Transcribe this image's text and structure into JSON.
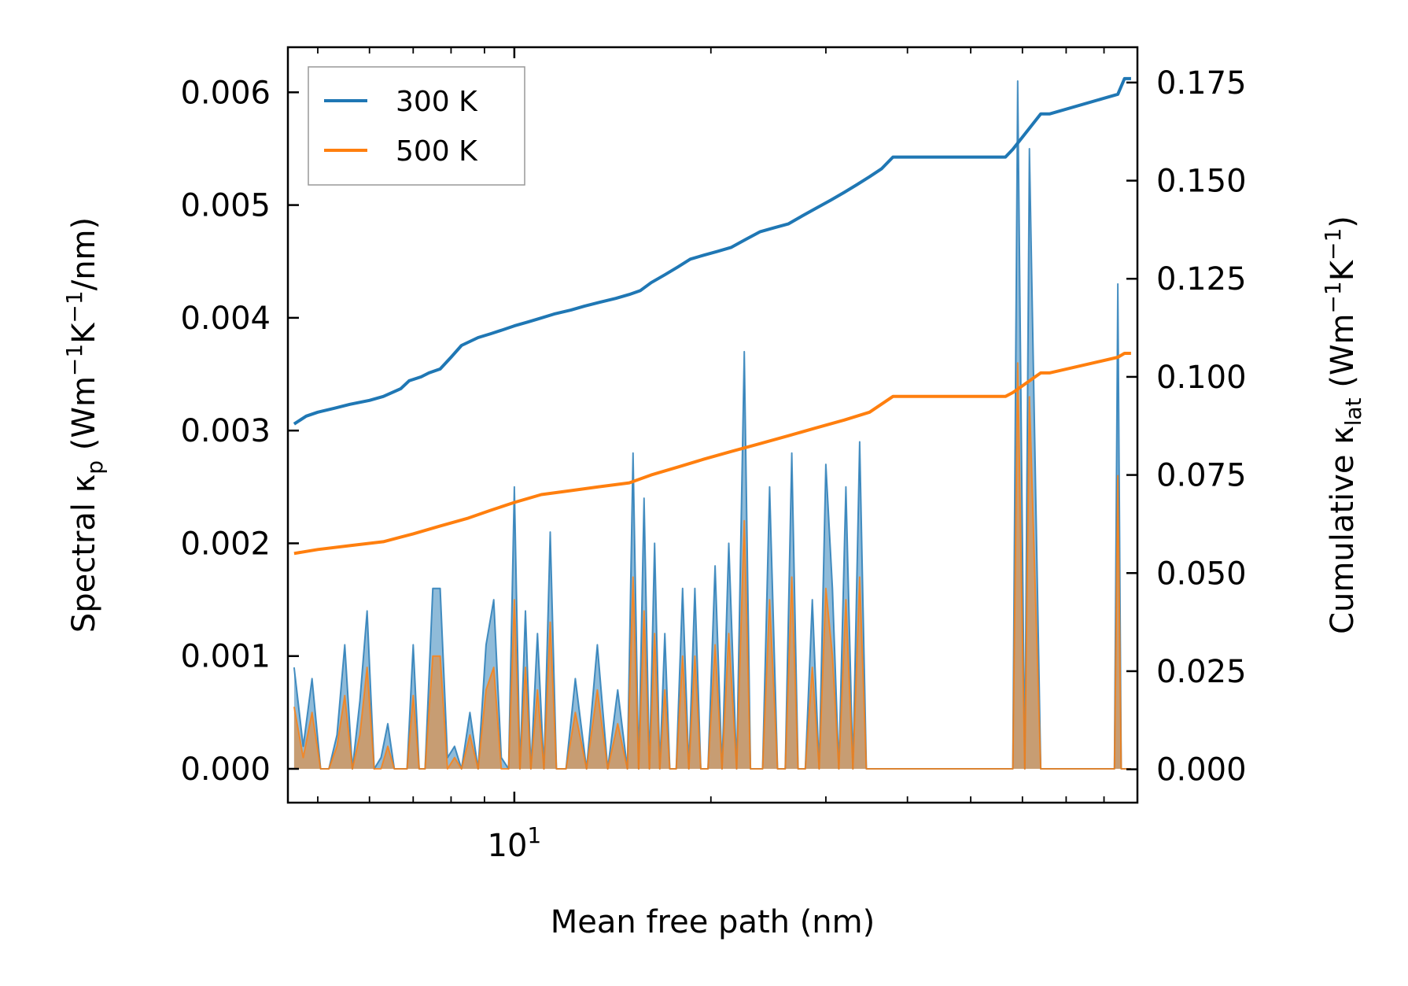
{
  "chart_data": {
    "type": "line",
    "xlabel": "Mean free path (nm)",
    "x_scale": "log",
    "xlim": [
      4.5,
      90
    ],
    "x_major_tick_labels": [
      {
        "value": 10,
        "base": "10",
        "exp": "1"
      }
    ],
    "ylabel_left": {
      "pre": "Spectral κ",
      "sub": "p",
      "unit": " (Wm",
      "e1": "−1",
      "mid": "K",
      "e2": "−1",
      "post": "/nm)"
    },
    "ylim_left": [
      -0.0003,
      0.0064
    ],
    "yticks_left": [
      "0.000",
      "0.001",
      "0.002",
      "0.003",
      "0.004",
      "0.005",
      "0.006"
    ],
    "ytick_values_left": [
      0,
      0.001,
      0.002,
      0.003,
      0.004,
      0.005,
      0.006
    ],
    "ylabel_right": {
      "pre": "Cumulative κ",
      "sub": "lat",
      "unit": " (Wm",
      "e1": "−1",
      "mid": "K",
      "e2": "−1",
      "post": ")"
    },
    "ylim_right": [
      -0.0085,
      0.184
    ],
    "yticks_right": [
      "0.000",
      "0.025",
      "0.050",
      "0.075",
      "0.100",
      "0.125",
      "0.150",
      "0.175"
    ],
    "ytick_values_right": [
      0,
      0.025,
      0.05,
      0.075,
      0.1,
      0.125,
      0.15,
      0.175
    ],
    "legend": {
      "position": "top-left",
      "entries": [
        "300 K",
        "500 K"
      ]
    },
    "colors": {
      "300K": "#1f77b4",
      "500K": "#ff7f0e"
    },
    "series": [
      {
        "name": "300 K",
        "axis": "right",
        "kind": "cumulative",
        "x": [
          4.6,
          4.8,
          5.0,
          5.3,
          5.6,
          6.0,
          6.3,
          6.7,
          6.9,
          7.2,
          7.4,
          7.7,
          8.0,
          8.3,
          8.8,
          9.2,
          9.6,
          10.0,
          10.5,
          11.0,
          11.5,
          12.2,
          12.8,
          13.5,
          14.3,
          15.0,
          15.6,
          16.2,
          17.0,
          17.8,
          18.6,
          19.5,
          20.5,
          21.5,
          22.6,
          23.8,
          25.0,
          26.3,
          27.6,
          29.0,
          30.5,
          32.0,
          33.5,
          35.0,
          36.5,
          38.0,
          56.5,
          58.0,
          64.0,
          66.0,
          84.0,
          86.0,
          88.0
        ],
        "values": [
          0.088,
          0.09,
          0.091,
          0.092,
          0.093,
          0.094,
          0.095,
          0.097,
          0.099,
          0.1,
          0.101,
          0.102,
          0.105,
          0.108,
          0.11,
          0.111,
          0.112,
          0.113,
          0.114,
          0.115,
          0.116,
          0.117,
          0.118,
          0.119,
          0.12,
          0.121,
          0.122,
          0.124,
          0.126,
          0.128,
          0.13,
          0.131,
          0.132,
          0.133,
          0.135,
          0.137,
          0.138,
          0.139,
          0.141,
          0.143,
          0.145,
          0.147,
          0.149,
          0.151,
          0.153,
          0.156,
          0.156,
          0.158,
          0.167,
          0.167,
          0.172,
          0.176,
          0.176
        ]
      },
      {
        "name": "500 K",
        "axis": "right",
        "kind": "cumulative",
        "x": [
          4.6,
          5.0,
          5.6,
          6.3,
          7.0,
          7.7,
          8.5,
          9.2,
          10.0,
          11.0,
          12.2,
          13.5,
          15.0,
          16.2,
          17.8,
          19.5,
          21.5,
          23.8,
          26.3,
          29.0,
          32.0,
          35.0,
          38.0,
          56.5,
          58.0,
          64.0,
          66.0,
          84.0,
          86.0,
          88.0
        ],
        "values": [
          0.055,
          0.056,
          0.057,
          0.058,
          0.06,
          0.062,
          0.064,
          0.066,
          0.068,
          0.07,
          0.071,
          0.072,
          0.073,
          0.075,
          0.077,
          0.079,
          0.081,
          0.083,
          0.085,
          0.087,
          0.089,
          0.091,
          0.095,
          0.095,
          0.096,
          0.101,
          0.101,
          0.105,
          0.106,
          0.106
        ]
      },
      {
        "name": "300 K spectral",
        "axis": "left",
        "kind": "spectral",
        "x": [
          4.6,
          4.75,
          4.9,
          5.05,
          5.2,
          5.35,
          5.5,
          5.65,
          5.8,
          5.95,
          6.1,
          6.25,
          6.4,
          6.55,
          6.7,
          6.85,
          7.0,
          7.15,
          7.3,
          7.5,
          7.7,
          7.9,
          8.1,
          8.3,
          8.55,
          8.8,
          9.05,
          9.3,
          9.55,
          9.8,
          10.0,
          10.2,
          10.4,
          10.6,
          10.85,
          11.1,
          11.35,
          11.6,
          12.0,
          12.4,
          12.9,
          13.4,
          13.9,
          14.4,
          14.9,
          15.2,
          15.5,
          15.8,
          16.1,
          16.4,
          16.7,
          17.0,
          17.3,
          17.7,
          18.1,
          18.5,
          18.9,
          19.3,
          19.8,
          20.3,
          20.8,
          21.3,
          21.9,
          22.5,
          23.0,
          23.5,
          24.0,
          24.6,
          25.3,
          26.0,
          26.6,
          27.2,
          27.9,
          28.6,
          29.3,
          30.0,
          30.7,
          31.4,
          32.2,
          33.0,
          33.8,
          34.6,
          35.4,
          36.2,
          37.0,
          38.0,
          56.0,
          57.0,
          58.0,
          59.0,
          60.5,
          61.5,
          64.0,
          65.0,
          66.0,
          67.0,
          82.0,
          83.0,
          84.0,
          85.0,
          86.0,
          87.0,
          88.0
        ],
        "values": [
          0.0009,
          0.0002,
          0.0008,
          0.0,
          0.0,
          0.0003,
          0.0011,
          0.0,
          0.0006,
          0.0014,
          0.0,
          0.0001,
          0.0004,
          0.0,
          0.0,
          0.0,
          0.0011,
          0.0,
          0.0,
          0.0016,
          0.0016,
          0.0001,
          0.0002,
          0.0,
          0.0005,
          0.0,
          0.0011,
          0.0015,
          0.0001,
          0.0,
          0.0025,
          0.0,
          0.0014,
          0.0,
          0.0012,
          0.0,
          0.0021,
          0.0,
          0.0,
          0.0008,
          0.0,
          0.0011,
          0.0,
          0.0007,
          0.0,
          0.0028,
          0.0,
          0.0024,
          0.0,
          0.002,
          0.0,
          0.0012,
          0.0,
          0.0,
          0.0016,
          0.0,
          0.0016,
          0.0,
          0.0,
          0.0018,
          0.0,
          0.002,
          0.0,
          0.0037,
          0.0,
          0.0,
          0.0,
          0.0025,
          0.0,
          0.0,
          0.0028,
          0.0,
          0.0,
          0.0015,
          0.0,
          0.0027,
          0.0016,
          0.0,
          0.0025,
          0.0,
          0.0029,
          0.0,
          0.0,
          0.0,
          0.0,
          0.0,
          0.0,
          0.0,
          0.0,
          0.0061,
          0.0,
          0.0055,
          0.0,
          0.0,
          0.0,
          0.0,
          0.0,
          0.0,
          0.0043,
          0.0,
          0.0,
          0.0,
          0.0
        ]
      },
      {
        "name": "500 K spectral",
        "axis": "left",
        "kind": "spectral",
        "x": [
          4.6,
          4.75,
          4.9,
          5.05,
          5.2,
          5.35,
          5.5,
          5.65,
          5.8,
          5.95,
          6.1,
          6.25,
          6.4,
          6.55,
          6.7,
          6.85,
          7.0,
          7.15,
          7.3,
          7.5,
          7.7,
          7.9,
          8.1,
          8.3,
          8.55,
          8.8,
          9.05,
          9.3,
          9.55,
          9.8,
          10.0,
          10.2,
          10.4,
          10.6,
          10.85,
          11.1,
          11.35,
          11.6,
          12.0,
          12.4,
          12.9,
          13.4,
          13.9,
          14.4,
          14.9,
          15.2,
          15.5,
          15.8,
          16.1,
          16.4,
          16.7,
          17.0,
          17.3,
          17.7,
          18.1,
          18.5,
          18.9,
          19.3,
          19.8,
          20.3,
          20.8,
          21.3,
          21.9,
          22.5,
          23.0,
          23.5,
          24.0,
          24.6,
          25.3,
          26.0,
          26.6,
          27.2,
          27.9,
          28.6,
          29.3,
          30.0,
          30.7,
          31.4,
          32.2,
          33.0,
          33.8,
          34.6,
          35.4,
          36.2,
          37.0,
          38.0,
          56.0,
          57.0,
          58.0,
          59.0,
          60.5,
          61.5,
          64.0,
          65.0,
          66.0,
          67.0,
          82.0,
          83.0,
          84.0,
          85.0,
          86.0,
          87.0,
          88.0
        ],
        "values": [
          0.00055,
          0.0001,
          0.0005,
          0.0,
          0.0,
          0.0002,
          0.00065,
          0.0,
          0.0003,
          0.0009,
          0.0,
          0.0,
          0.0002,
          0.0,
          0.0,
          0.0,
          0.00065,
          0.0,
          0.0,
          0.001,
          0.001,
          0.0,
          0.0001,
          0.0,
          0.0003,
          0.0,
          0.0007,
          0.0009,
          0.0,
          0.0,
          0.0015,
          0.0,
          0.0009,
          0.0,
          0.0007,
          0.0,
          0.0013,
          0.0,
          0.0,
          0.0005,
          0.0,
          0.0007,
          0.0,
          0.0004,
          0.0,
          0.0017,
          0.0,
          0.0014,
          0.0,
          0.0012,
          0.0,
          0.0007,
          0.0,
          0.0,
          0.001,
          0.0,
          0.001,
          0.0,
          0.0,
          0.0011,
          0.0,
          0.0012,
          0.0,
          0.0022,
          0.0,
          0.0,
          0.0,
          0.0015,
          0.0,
          0.0,
          0.0017,
          0.0,
          0.0,
          0.0009,
          0.0,
          0.0016,
          0.001,
          0.0,
          0.0015,
          0.0,
          0.0017,
          0.0,
          0.0,
          0.0,
          0.0,
          0.0,
          0.0,
          0.0,
          0.0,
          0.0036,
          0.0,
          0.0033,
          0.0,
          0.0,
          0.0,
          0.0,
          0.0,
          0.0,
          0.0026,
          0.0,
          0.0,
          0.0,
          0.0
        ]
      }
    ]
  }
}
